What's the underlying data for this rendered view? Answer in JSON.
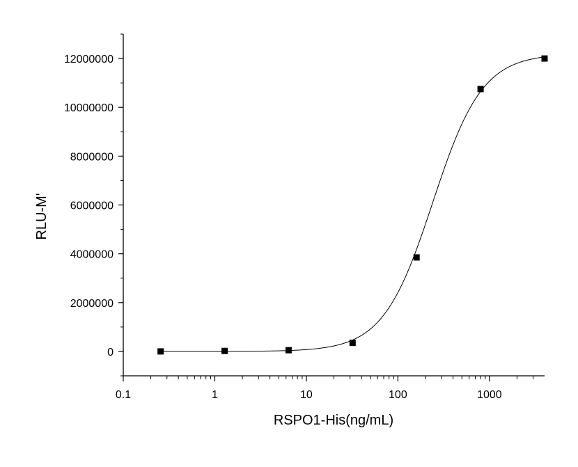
{
  "chart_data": {
    "type": "scatter",
    "title": "",
    "xlabel": "RSPO1-His(ng/mL)",
    "ylabel": "RLU-M'",
    "x_scale": "log",
    "xlim": [
      0.1,
      4000
    ],
    "ylim": [
      -1000000,
      13000000
    ],
    "x_ticks": [
      {
        "value": 0.1,
        "label": "0.1"
      },
      {
        "value": 1,
        "label": "1"
      },
      {
        "value": 10,
        "label": "10"
      },
      {
        "value": 100,
        "label": "100"
      },
      {
        "value": 1000,
        "label": "1000"
      }
    ],
    "y_ticks": [
      {
        "value": 0,
        "label": "0"
      },
      {
        "value": 2000000,
        "label": "2000000"
      },
      {
        "value": 4000000,
        "label": "4000000"
      },
      {
        "value": 6000000,
        "label": "6000000"
      },
      {
        "value": 8000000,
        "label": "8000000"
      },
      {
        "value": 10000000,
        "label": "10000000"
      },
      {
        "value": 12000000,
        "label": "12000000"
      }
    ],
    "grid": false,
    "legend": "none",
    "series": [
      {
        "marker": "square",
        "color": "#000000",
        "x": [
          0.256,
          1.28,
          6.4,
          32,
          160,
          800,
          4000
        ],
        "y": [
          0,
          20000,
          50000,
          350000,
          3850000,
          10750000,
          12000000
        ]
      }
    ],
    "fit_curve": {
      "model": "4PL",
      "bottom": 0,
      "top": 12200000,
      "ec50": 240,
      "hill": 1.6,
      "color": "#000000"
    }
  }
}
